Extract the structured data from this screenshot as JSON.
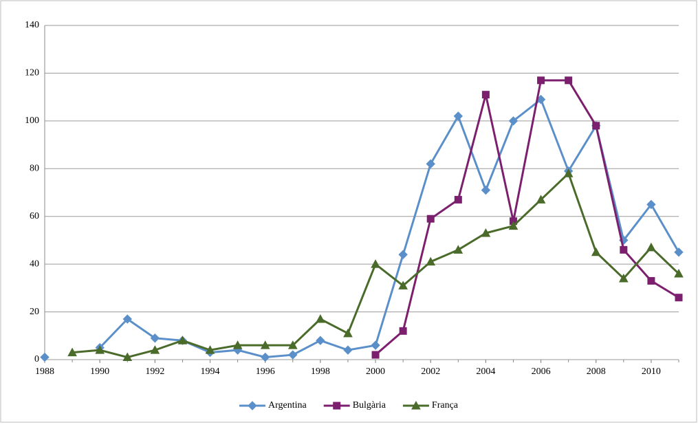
{
  "chart_data": {
    "type": "line",
    "x": [
      1988,
      1989,
      1990,
      1991,
      1992,
      1993,
      1994,
      1995,
      1996,
      1997,
      1998,
      1999,
      2000,
      2001,
      2002,
      2003,
      2004,
      2005,
      2006,
      2007,
      2008,
      2009,
      2010,
      2011
    ],
    "series": [
      {
        "name": "Argentina",
        "color": "#5b8fc9",
        "marker": "diamond",
        "values": [
          1,
          null,
          5,
          17,
          9,
          8,
          3,
          4,
          1,
          2,
          8,
          4,
          6,
          44,
          82,
          102,
          71,
          100,
          109,
          79,
          98,
          50,
          65,
          45
        ]
      },
      {
        "name": "Bulgària",
        "color": "#7b1f6e",
        "marker": "square",
        "values": [
          null,
          null,
          null,
          null,
          null,
          null,
          null,
          null,
          null,
          null,
          null,
          null,
          2,
          12,
          59,
          67,
          111,
          58,
          117,
          117,
          98,
          46,
          33,
          26
        ]
      },
      {
        "name": "França",
        "color": "#4a6b2a",
        "marker": "triangle",
        "values": [
          null,
          3,
          4,
          1,
          4,
          8,
          4,
          6,
          6,
          6,
          17,
          11,
          40,
          31,
          41,
          46,
          53,
          56,
          67,
          78,
          45,
          34,
          47,
          36
        ]
      }
    ],
    "xlim": [
      1988,
      2011
    ],
    "xticks": [
      1988,
      1990,
      1992,
      1994,
      1996,
      1998,
      2000,
      2002,
      2004,
      2006,
      2008,
      2010
    ],
    "ylim": [
      0,
      140
    ],
    "yticks": [
      0,
      20,
      40,
      60,
      80,
      100,
      120,
      140
    ],
    "grid": true,
    "legend": "bottom"
  }
}
